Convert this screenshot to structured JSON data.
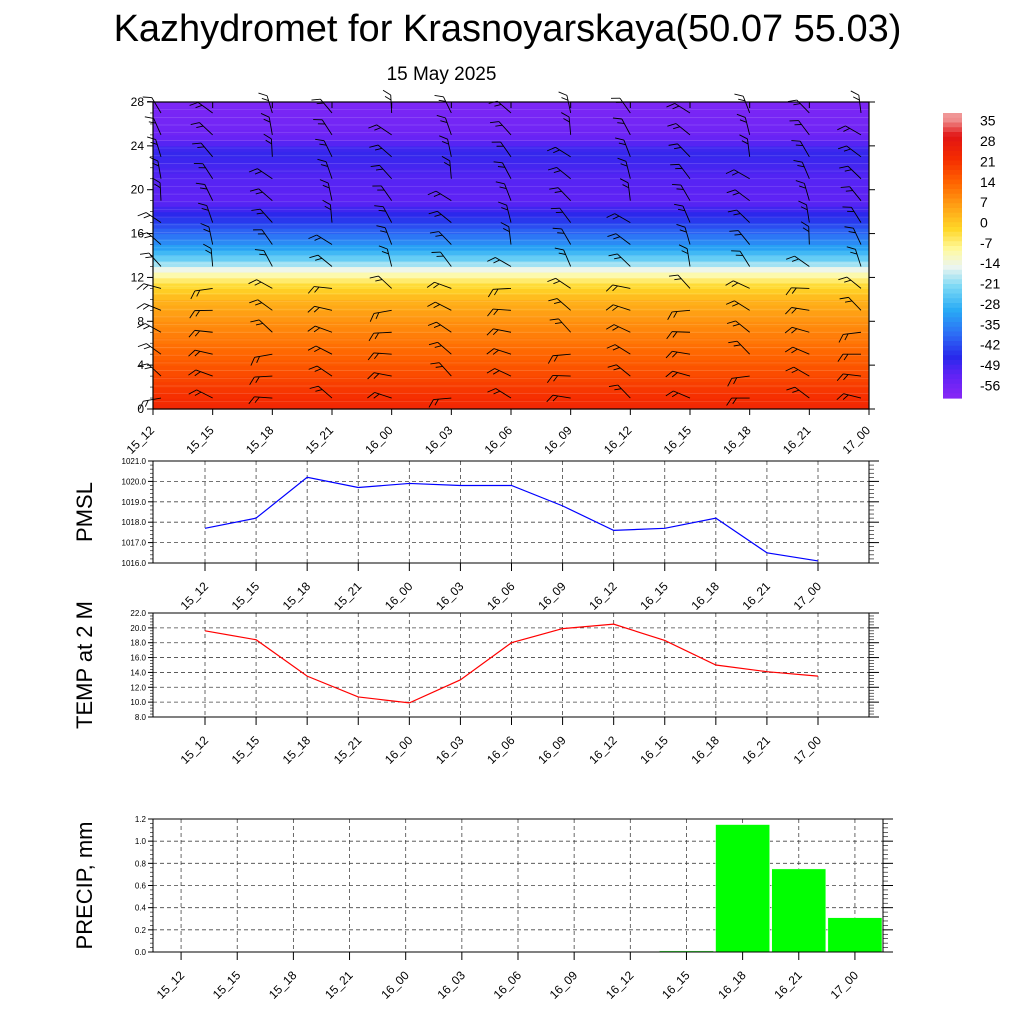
{
  "title": "Kazhydromet for Krasnoyarskaya(50.07 55.03)",
  "date": "15 May 2025",
  "time_labels": [
    "15_12",
    "15_15",
    "15_18",
    "15_21",
    "16_00",
    "16_03",
    "16_06",
    "16_09",
    "16_12",
    "16_15",
    "16_18",
    "16_21",
    "17_00"
  ],
  "chart_data": [
    {
      "type": "heatmap",
      "y_ticks": [
        "0",
        "4",
        "8",
        "12",
        "16",
        "20",
        "24",
        "28"
      ],
      "ylim": [
        0,
        28
      ],
      "x_labels": [
        "15_12",
        "15_15",
        "15_18",
        "15_21",
        "16_00",
        "16_03",
        "16_06",
        "16_09",
        "16_12",
        "16_15",
        "16_18",
        "16_21",
        "17_00"
      ],
      "colorbar_labels": [
        "35",
        "28",
        "21",
        "14",
        "7",
        "0",
        "-7",
        "-14",
        "-21",
        "-28",
        "-35",
        "-42",
        "-49",
        "-56"
      ],
      "colorbar_range": [
        -60,
        38
      ],
      "temperature_profile": [
        {
          "level": 0,
          "value": 24
        },
        {
          "level": 2,
          "value": 20
        },
        {
          "level": 4,
          "value": 16
        },
        {
          "level": 6,
          "value": 12
        },
        {
          "level": 8,
          "value": 8
        },
        {
          "level": 10,
          "value": 3
        },
        {
          "level": 11.5,
          "value": -4
        },
        {
          "level": 12.5,
          "value": -12
        },
        {
          "level": 13.5,
          "value": -22
        },
        {
          "level": 15,
          "value": -33
        },
        {
          "level": 17,
          "value": -43
        },
        {
          "level": 19,
          "value": -52
        },
        {
          "level": 21,
          "value": -51
        },
        {
          "level": 23.5,
          "value": -47
        },
        {
          "level": 25,
          "value": -55
        },
        {
          "level": 28,
          "value": -58
        }
      ],
      "wind_barbs": true
    },
    {
      "type": "line",
      "ylabel": "PMSL",
      "x": [
        "15_12",
        "15_15",
        "15_18",
        "15_21",
        "16_00",
        "16_03",
        "16_06",
        "16_09",
        "16_12",
        "16_15",
        "16_18",
        "16_21",
        "17_00"
      ],
      "values": [
        1017.7,
        1018.2,
        1020.2,
        1019.7,
        1019.9,
        1019.8,
        1019.8,
        1018.8,
        1017.6,
        1017.7,
        1018.2,
        1016.5,
        1016.1
      ],
      "ylim": [
        1016.0,
        1021.0
      ],
      "y_ticks": [
        "1016.0",
        "1017.0",
        "1018.0",
        "1019.0",
        "1020.0",
        "1021.0"
      ],
      "color": "#0000ff"
    },
    {
      "type": "line",
      "ylabel": "TEMP at 2 M",
      "x": [
        "15_12",
        "15_15",
        "15_18",
        "15_21",
        "16_00",
        "16_03",
        "16_06",
        "16_09",
        "16_12",
        "16_15",
        "16_18",
        "16_21",
        "17_00"
      ],
      "values": [
        19.6,
        18.4,
        13.5,
        10.7,
        9.9,
        13.0,
        18.0,
        19.9,
        20.5,
        18.3,
        15.0,
        14.1,
        13.5
      ],
      "ylim": [
        8.0,
        22.0
      ],
      "y_ticks": [
        "8.0",
        "10.0",
        "12.0",
        "14.0",
        "16.0",
        "18.0",
        "20.0",
        "22.0"
      ],
      "color": "#ff0000"
    },
    {
      "type": "bar",
      "ylabel": "PRECIP, mm",
      "categories": [
        "15_12",
        "15_15",
        "15_18",
        "15_21",
        "16_00",
        "16_03",
        "16_06",
        "16_09",
        "16_12",
        "16_15",
        "16_18",
        "16_21",
        "17_00"
      ],
      "values": [
        0,
        0,
        0,
        0,
        0,
        0,
        0,
        0,
        0,
        0.01,
        1.15,
        0.75,
        0.31
      ],
      "ylim": [
        0,
        1.2
      ],
      "y_ticks": [
        "0.0",
        "0.2",
        "0.4",
        "0.6",
        "0.8",
        "1.0",
        "1.2"
      ],
      "color": "#00ff00"
    }
  ]
}
